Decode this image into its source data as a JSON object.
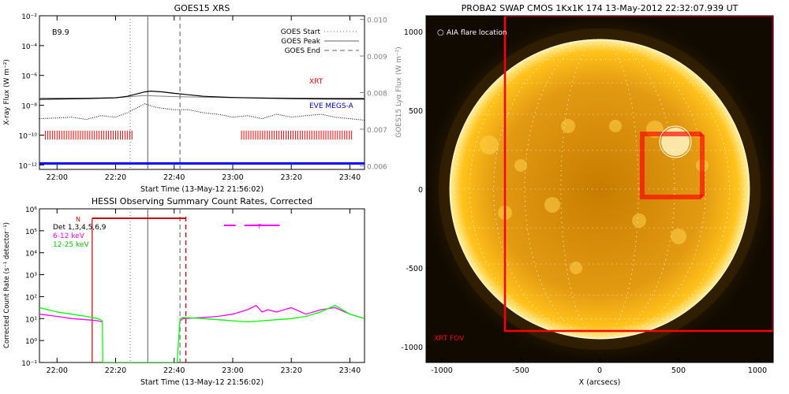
{
  "colors": {
    "xrt_curve": "#000000",
    "xrt_label": "#ff0000",
    "eve_label": "#0000cc",
    "lya": "#808080",
    "xrt_bars": "#ff0000",
    "blue_line": "#0000ff",
    "hessi_6_12": "#ff00ff",
    "hessi_12_25": "#00ff00",
    "flag_line": "#cc0000",
    "sun_bg": "#000000",
    "sun_core": "#fff4c2",
    "sun_mid": "#ffc21a",
    "sun_edge": "#e08a00",
    "fov_red": "#ff0000",
    "grid_white": "#ffffff"
  },
  "chart_data": [
    {
      "type": "line",
      "title": "GOES15 XRS",
      "xlabel": "Start Time (13-May-12 21:56:02)",
      "ylabel": "X-ray Flux (W m⁻²)",
      "y2label": "GOES15 Lyα Flux (W m⁻²)",
      "x_tick_labels": [
        "22:00",
        "22:20",
        "22:40",
        "23:00",
        "23:20",
        "23:40"
      ],
      "y_tick_labels": [
        "10⁻²",
        "10⁻⁴",
        "10⁻⁶",
        "10⁻⁸",
        "10⁻¹⁰",
        "10⁻¹²"
      ],
      "y2_tick_labels": [
        "0.010",
        "0.009",
        "0.008",
        "0.007",
        "0.006"
      ],
      "xlim_minutes": [
        -6,
        105
      ],
      "ylim_log10": [
        -12.3,
        -2
      ],
      "y2lim": [
        0.0059,
        0.0101
      ],
      "class_label": "B9.9",
      "legend": [
        {
          "label": "GOES Start",
          "style": "dotted"
        },
        {
          "label": "GOES Peak",
          "style": "solid"
        },
        {
          "label": "GOES End",
          "style": "dashed"
        }
      ],
      "event_lines_minutes": {
        "start": 25,
        "peak": 31,
        "end": 42
      },
      "xrt_label": "XRT",
      "eve_label": "EVE MEGS-A",
      "xrt_bar_intervals_minutes": [
        [
          -4,
          26
        ],
        [
          63,
          101
        ]
      ],
      "series": [
        {
          "name": "XRT",
          "x": [
            -6,
            0,
            10,
            20,
            24,
            27,
            30,
            32,
            36,
            40,
            45,
            50,
            60,
            70,
            80,
            90,
            100,
            105
          ],
          "log10_y": [
            -7.6,
            -7.58,
            -7.55,
            -7.5,
            -7.4,
            -7.25,
            -7.1,
            -7.05,
            -7.1,
            -7.2,
            -7.3,
            -7.4,
            -7.48,
            -7.52,
            -7.55,
            -7.57,
            -7.58,
            -7.58
          ]
        },
        {
          "name": "EVE MEGS-A",
          "x": [
            -6,
            0,
            5,
            10,
            15,
            20,
            24,
            27,
            30,
            33,
            36,
            40,
            45,
            50,
            55,
            60,
            65,
            70,
            75,
            80,
            85,
            90,
            95,
            100,
            105
          ],
          "log10_y": [
            -8.9,
            -8.85,
            -8.8,
            -8.95,
            -8.7,
            -8.8,
            -8.5,
            -8.2,
            -7.9,
            -8.1,
            -8.2,
            -8.3,
            -8.3,
            -8.5,
            -8.6,
            -8.8,
            -8.7,
            -8.9,
            -8.6,
            -8.8,
            -8.7,
            -8.6,
            -8.8,
            -8.9,
            -9.0
          ]
        },
        {
          "name": "Lya",
          "x": [
            -6,
            10,
            20,
            30,
            40,
            60,
            80,
            105
          ],
          "y": [
            0.00785,
            0.00785,
            0.00786,
            0.00792,
            0.00789,
            0.00786,
            0.00785,
            0.00785
          ]
        },
        {
          "name": "EVE",
          "x": [
            -6,
            105
          ],
          "log10_y": [
            -11.9,
            -11.9
          ]
        }
      ]
    },
    {
      "type": "line",
      "title": "HESSI Observing Summary Count Rates, Corrected",
      "xlabel": "Start Time (13-May-12 21:56:02)",
      "ylabel": "Corrected Count Rate (s⁻¹ detector⁻¹)",
      "x_tick_labels": [
        "22:00",
        "22:20",
        "22:40",
        "23:00",
        "23:20",
        "23:40"
      ],
      "y_tick_labels": [
        "10⁶",
        "10⁵",
        "10⁴",
        "10³",
        "10²",
        "10¹",
        "10⁰",
        "10⁻¹"
      ],
      "xlim_minutes": [
        -6,
        105
      ],
      "ylim_log10": [
        -1,
        6
      ],
      "legend": [
        {
          "label": "Det 1,3,4,5,6,9",
          "color": "#000000"
        },
        {
          "label": "6-12 keV",
          "color": "#ff00ff"
        },
        {
          "label": "12-25 keV",
          "color": "#00ff00"
        }
      ],
      "flag_labels": {
        "n": "N",
        "f": "F"
      },
      "n_interval_minutes": [
        12,
        44
      ],
      "f_intervals_minutes": [
        [
          57,
          61
        ],
        [
          64,
          76
        ]
      ],
      "event_lines_minutes": {
        "start": 25,
        "peak": 31,
        "end": 42,
        "end2": 44
      },
      "series": [
        {
          "name": "6-12 keV",
          "x": [
            -6,
            0,
            5,
            10,
            14,
            15.5,
            42,
            43,
            50,
            55,
            60,
            65,
            68,
            70,
            72,
            75,
            80,
            85,
            90,
            95,
            100,
            105
          ],
          "log10_y": [
            1.2,
            1.1,
            1.0,
            0.95,
            0.9,
            0.85,
            0.9,
            1.0,
            1.05,
            1.1,
            1.2,
            1.4,
            1.6,
            1.3,
            1.4,
            1.3,
            1.5,
            1.2,
            1.4,
            1.5,
            1.2,
            1.0
          ]
        },
        {
          "name": "12-25 keV",
          "x": [
            -6,
            0,
            5,
            10,
            14,
            15.5,
            15.6,
            41,
            42,
            43,
            50,
            55,
            60,
            65,
            70,
            75,
            80,
            85,
            90,
            95,
            100,
            105
          ],
          "log10_y": [
            1.5,
            1.3,
            1.2,
            1.1,
            1.0,
            0.9,
            -1.0,
            -1.0,
            1.0,
            1.05,
            1.0,
            0.95,
            0.9,
            0.85,
            0.9,
            0.95,
            1.0,
            1.1,
            1.3,
            1.6,
            1.2,
            1.0
          ]
        }
      ]
    },
    {
      "type": "heatmap",
      "title": "PROBA2 SWAP CMOS 1Kx1K 174 13-May-2012 22:32:07.939 UT",
      "xlabel": "X (arcsecs)",
      "x_tick_labels": [
        "-1000",
        "-500",
        "0",
        "500",
        "1000"
      ],
      "y_tick_labels": [
        "1000",
        "500",
        "0",
        "-500",
        "-1000"
      ],
      "xlim": [
        -1100,
        1100
      ],
      "ylim": [
        -1100,
        1100
      ],
      "aia_label": "AIA flare location",
      "xrt_fov_label": "XRT FOV",
      "sun_radius_arcsec": 950,
      "xrt_fov": {
        "x": [
          -600,
          1100
        ],
        "y": [
          -900,
          1100
        ]
      },
      "flare_location": {
        "x": 480,
        "y": 300
      }
    }
  ]
}
